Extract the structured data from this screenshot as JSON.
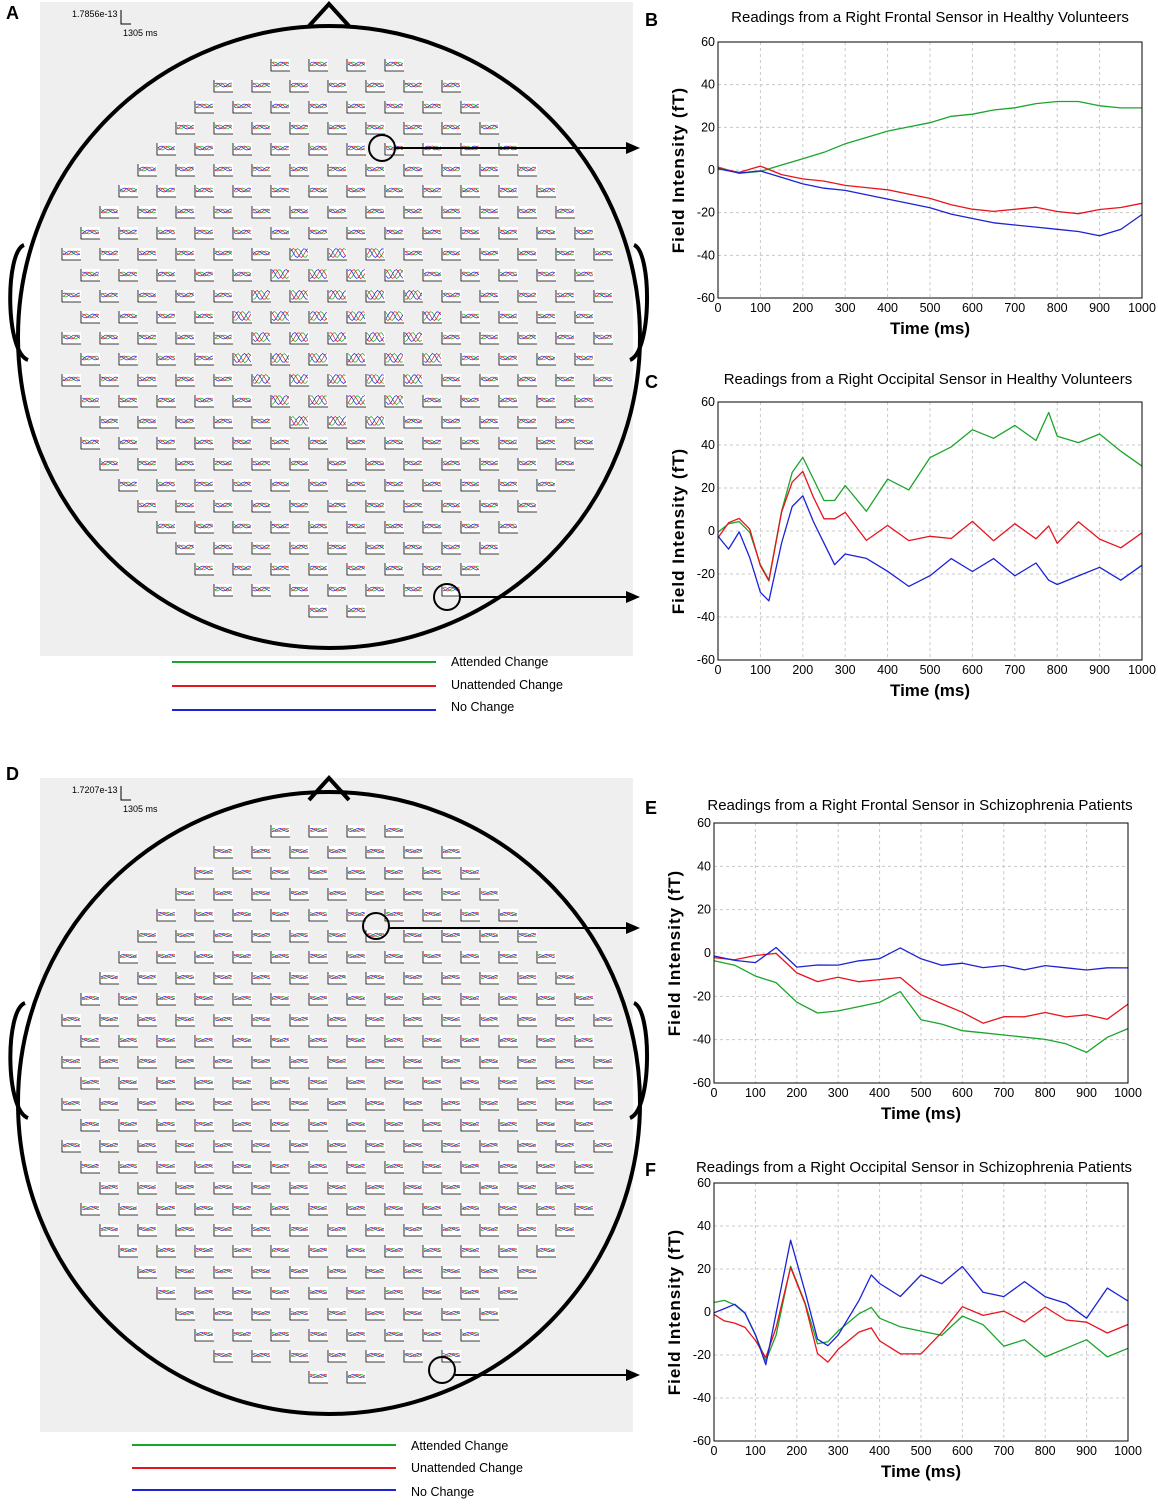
{
  "colors": {
    "attended": "#1aa52c",
    "unattended": "#e8141c",
    "nochange": "#1c22d6",
    "grid": "#c8c8c8",
    "headbg": "#efefef"
  },
  "legend_top": [
    {
      "label": "Attended Change",
      "color": "#1aa52c"
    },
    {
      "label": "Unattended Change",
      "color": "#e8141c"
    },
    {
      "label": "No Change",
      "color": "#1c22d6"
    }
  ],
  "legend_bottom": [
    {
      "label": "Attended Change",
      "color": "#1aa52c"
    },
    {
      "label": "Unattended Change",
      "color": "#e8141c"
    },
    {
      "label": "No Change",
      "color": "#1c22d6"
    }
  ],
  "head_top": {
    "letter": "A",
    "scale_value": "1.7856e-13",
    "scale_time": "1305 ms"
  },
  "head_bottom": {
    "letter": "D",
    "scale_value": "1.7207e-13",
    "scale_time": "1305 ms"
  },
  "chart_data": [
    {
      "panel": "B",
      "type": "line",
      "title": "Readings from a Right Frontal Sensor in Healthy Volunteers",
      "xlabel": "Time (ms)",
      "ylabel": "Field Intensity (fT)",
      "xlim": [
        0,
        1000
      ],
      "ylim": [
        -60,
        60
      ],
      "grid": true,
      "xticks": [
        0,
        100,
        200,
        300,
        400,
        500,
        600,
        700,
        800,
        900,
        1000
      ],
      "yticks": [
        -60,
        -40,
        -20,
        0,
        20,
        40,
        60
      ],
      "x": [
        0,
        50,
        100,
        150,
        200,
        250,
        300,
        350,
        400,
        450,
        500,
        550,
        600,
        650,
        700,
        750,
        800,
        850,
        900,
        950,
        1000
      ],
      "series": [
        {
          "name": "Attended Change",
          "color": "#1aa52c",
          "values": [
            2,
            -1,
            0,
            3,
            6,
            9,
            13,
            16,
            19,
            21,
            23,
            26,
            27,
            29,
            30,
            32,
            33,
            33,
            31,
            30,
            30
          ]
        },
        {
          "name": "Unattended Change",
          "color": "#e8141c",
          "values": [
            0,
            -2,
            1,
            -3,
            -5,
            -6,
            -8,
            -9,
            -10,
            -12,
            -14,
            -17,
            -19,
            -20,
            -19,
            -18,
            -20,
            -21,
            -19,
            -18,
            -16
          ]
        },
        {
          "name": "No Change",
          "color": "#1c22d6",
          "values": [
            1,
            -1,
            0,
            -3,
            -6,
            -8,
            -9,
            -11,
            -13,
            -15,
            -17,
            -20,
            -22,
            -24,
            -25,
            -26,
            -27,
            -28,
            -30,
            -27,
            -20
          ]
        }
      ]
    },
    {
      "panel": "C",
      "type": "line",
      "title": "Readings from a Right Occipital Sensor in Healthy Volunteers",
      "xlabel": "Time (ms)",
      "ylabel": "Field Intensity (fT)",
      "xlim": [
        0,
        1000
      ],
      "ylim": [
        -60,
        60
      ],
      "grid": true,
      "xticks": [
        0,
        100,
        200,
        300,
        400,
        500,
        600,
        700,
        800,
        900,
        1000
      ],
      "yticks": [
        -60,
        -40,
        -20,
        0,
        20,
        40,
        60
      ],
      "x": [
        0,
        25,
        50,
        75,
        100,
        120,
        150,
        175,
        200,
        225,
        250,
        275,
        300,
        350,
        400,
        450,
        500,
        550,
        600,
        650,
        700,
        750,
        780,
        800,
        850,
        900,
        950,
        1000
      ],
      "series": [
        {
          "name": "Attended Change",
          "color": "#1aa52c",
          "values": [
            0,
            4,
            5,
            0,
            -15,
            -22,
            10,
            28,
            35,
            25,
            15,
            15,
            22,
            10,
            25,
            20,
            35,
            40,
            48,
            44,
            50,
            43,
            56,
            45,
            42,
            46,
            38,
            31
          ]
        },
        {
          "name": "Unattended Change",
          "color": "#e8141c",
          "values": [
            -4,
            3,
            5,
            0,
            -17,
            -24,
            8,
            22,
            27,
            15,
            5,
            5,
            8,
            -5,
            2,
            -5,
            -3,
            -4,
            4,
            -5,
            3,
            -4,
            2,
            -6,
            4,
            -4,
            -8,
            -1
          ]
        },
        {
          "name": "No Change",
          "color": "#1c22d6",
          "values": [
            -2,
            -8,
            0,
            -12,
            -28,
            -32,
            -5,
            12,
            17,
            5,
            -5,
            -15,
            -10,
            -12,
            -18,
            -25,
            -20,
            -12,
            -18,
            -12,
            -20,
            -14,
            -22,
            -24,
            -20,
            -16,
            -22,
            -15
          ]
        }
      ]
    },
    {
      "panel": "E",
      "type": "line",
      "title": "Readings from a Right Frontal Sensor in Schizophrenia Patients",
      "xlabel": "Time (ms)",
      "ylabel": "Field Intensity (fT)",
      "xlim": [
        0,
        1000
      ],
      "ylim": [
        -60,
        60
      ],
      "grid": true,
      "xticks": [
        0,
        100,
        200,
        300,
        400,
        500,
        600,
        700,
        800,
        900,
        1000
      ],
      "yticks": [
        -60,
        -40,
        -20,
        0,
        20,
        40,
        60
      ],
      "x": [
        0,
        50,
        100,
        150,
        200,
        250,
        300,
        350,
        400,
        450,
        500,
        550,
        600,
        650,
        700,
        750,
        800,
        850,
        900,
        950,
        1000
      ],
      "series": [
        {
          "name": "Attended Change",
          "color": "#1aa52c",
          "values": [
            -3,
            -5,
            -10,
            -13,
            -22,
            -27,
            -26,
            -24,
            -22,
            -17,
            -30,
            -32,
            -35,
            -36,
            -37,
            -38,
            -39,
            -41,
            -45,
            -38,
            -34
          ]
        },
        {
          "name": "Unattended Change",
          "color": "#e8141c",
          "values": [
            -3,
            -4,
            -2,
            -1,
            -10,
            -14,
            -12,
            -14,
            -13,
            -12,
            -20,
            -24,
            -28,
            -33,
            -30,
            -30,
            -28,
            -30,
            -29,
            -31,
            -24
          ]
        },
        {
          "name": "No Change",
          "color": "#1c22d6",
          "values": [
            -1,
            -3,
            -4,
            3,
            -6,
            -5,
            -5,
            -3,
            -2,
            3,
            -2,
            -5,
            -4,
            -6,
            -5,
            -7,
            -5,
            -6,
            -7,
            -6,
            -6
          ]
        }
      ]
    },
    {
      "panel": "F",
      "type": "line",
      "title": "Readings from a Right Occipital Sensor in Schizophrenia Patients",
      "xlabel": "Time (ms)",
      "ylabel": "Field Intensity (fT)",
      "xlim": [
        0,
        1000
      ],
      "ylim": [
        -60,
        60
      ],
      "grid": true,
      "xticks": [
        0,
        100,
        200,
        300,
        400,
        500,
        600,
        700,
        800,
        900,
        1000
      ],
      "yticks": [
        -60,
        -40,
        -20,
        0,
        20,
        40,
        60
      ],
      "x": [
        0,
        25,
        50,
        75,
        100,
        125,
        150,
        185,
        220,
        250,
        275,
        300,
        350,
        380,
        400,
        450,
        500,
        550,
        600,
        650,
        700,
        750,
        800,
        850,
        900,
        950,
        1000
      ],
      "series": [
        {
          "name": "Attended Change",
          "color": "#1aa52c",
          "values": [
            5,
            6,
            4,
            0,
            -10,
            -22,
            -10,
            22,
            5,
            -14,
            -13,
            -8,
            0,
            3,
            -2,
            -6,
            -8,
            -10,
            -1,
            -5,
            -15,
            -12,
            -20,
            -16,
            -12,
            -20,
            -16
          ]
        },
        {
          "name": "Unattended Change",
          "color": "#e8141c",
          "values": [
            -2,
            -5,
            -6,
            -8,
            -14,
            -22,
            -8,
            20,
            3,
            -20,
            -24,
            -18,
            -10,
            -8,
            -14,
            -20,
            -20,
            -10,
            2,
            -2,
            0,
            -5,
            2,
            -4,
            -5,
            -10,
            -6
          ]
        },
        {
          "name": "No Change",
          "color": "#1c22d6",
          "values": [
            0,
            2,
            4,
            0,
            -10,
            -24,
            0,
            34,
            10,
            -12,
            -15,
            -10,
            6,
            18,
            14,
            8,
            18,
            14,
            22,
            10,
            8,
            15,
            8,
            5,
            -2,
            12,
            6
          ]
        }
      ]
    }
  ]
}
